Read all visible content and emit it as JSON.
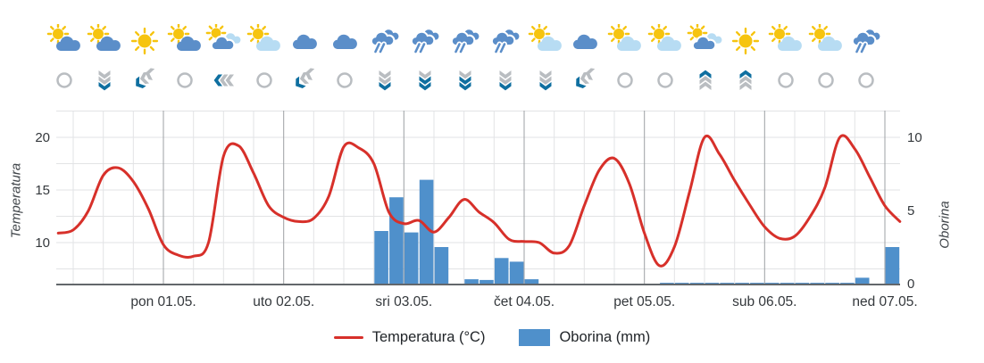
{
  "axes": {
    "left_title": "Temperatura",
    "right_title": "Oborina"
  },
  "legend": {
    "temperature_label": "Temperatura (°C)",
    "precipitation_label": "Oborina (mm)"
  },
  "colors": {
    "temperature": "#D7302A",
    "precipitation": "#4F90CB",
    "sun": "#F6C40F",
    "cloud_dark": "#5B8EC9",
    "cloud_light": "#B7DCF3",
    "wind_gray": "#B9BDC1",
    "wind_blue": "#0F6FA0",
    "grid_light": "#E2E3E5",
    "grid_day": "#9DA0A4",
    "axis_line": "#63676B",
    "text": "#34383C"
  },
  "forecast_icons": [
    {
      "weather": "sun-cloud",
      "wind": "calm"
    },
    {
      "weather": "sun-cloud",
      "wind": "down1"
    },
    {
      "weather": "sun",
      "wind": "curl"
    },
    {
      "weather": "sun-cloud",
      "wind": "calm"
    },
    {
      "weather": "sun-cloud-light",
      "wind": "left"
    },
    {
      "weather": "sun-light",
      "wind": "calm"
    },
    {
      "weather": "cloud",
      "wind": "curl"
    },
    {
      "weather": "cloud",
      "wind": "calm"
    },
    {
      "weather": "rain",
      "wind": "down1"
    },
    {
      "weather": "rain",
      "wind": "down2"
    },
    {
      "weather": "rain",
      "wind": "down2"
    },
    {
      "weather": "rain",
      "wind": "down1"
    },
    {
      "weather": "sun-light",
      "wind": "down1"
    },
    {
      "weather": "cloud",
      "wind": "curl"
    },
    {
      "weather": "sun-light",
      "wind": "calm"
    },
    {
      "weather": "sun-light",
      "wind": "calm"
    },
    {
      "weather": "sun-cloud-light",
      "wind": "up"
    },
    {
      "weather": "sun",
      "wind": "up"
    },
    {
      "weather": "sun-light",
      "wind": "calm"
    },
    {
      "weather": "sun-light",
      "wind": "calm"
    },
    {
      "weather": "rain",
      "wind": "calm"
    }
  ],
  "chart_data": {
    "type": "line+bar",
    "x_axis": {
      "day_labels": [
        "pon 01.05.",
        "uto 02.05.",
        "sri 03.05.",
        "čet 04.05.",
        "pet 05.05.",
        "sub 06.05.",
        "ned 07.05."
      ],
      "day_tick_hours": [
        0,
        24,
        48,
        72,
        96,
        120,
        144
      ],
      "minor_grid_step_hours": 6
    },
    "y_left": {
      "label": "Temperatura",
      "ticks": [
        20,
        15,
        10
      ],
      "min": 6.1,
      "max": 22.2
    },
    "y_right": {
      "label": "Oborina",
      "ticks": [
        10,
        5,
        0
      ],
      "min": 0,
      "max": 11.7
    },
    "series": [
      {
        "name": "Temperatura (°C)",
        "type": "line",
        "x_start_hours": -21,
        "x_step_hours": 3,
        "values": [
          10.9,
          11.2,
          13.0,
          16.4,
          17.1,
          15.8,
          13.2,
          9.8,
          8.8,
          8.7,
          10.0,
          18.2,
          19.2,
          16.6,
          13.5,
          12.4,
          12.0,
          12.3,
          14.4,
          19.1,
          19.0,
          17.5,
          12.9,
          11.8,
          12.1,
          11.0,
          12.4,
          14.1,
          12.9,
          11.9,
          10.3,
          10.1,
          10.0,
          9.0,
          9.7,
          13.5,
          16.9,
          18.0,
          15.6,
          10.9,
          7.8,
          9.6,
          14.8,
          20.0,
          18.4,
          15.9,
          13.6,
          11.5,
          10.4,
          10.6,
          12.4,
          15.2,
          20.0,
          18.9,
          16.2,
          13.5,
          12.0
        ]
      },
      {
        "name": "Oborina (mm)",
        "type": "bar",
        "x_start_hours": -21,
        "x_step_hours": 3,
        "values": [
          0,
          0,
          0,
          0,
          0,
          0,
          0,
          0,
          0,
          0,
          0,
          0,
          0,
          0,
          0,
          0,
          0,
          0,
          0,
          0,
          0,
          3.6,
          5.9,
          3.5,
          7.1,
          2.5,
          0,
          0.3,
          0.25,
          1.75,
          1.5,
          0.3,
          0,
          0,
          0,
          0,
          0,
          0,
          0,
          0,
          0.05,
          0.05,
          0.05,
          0.05,
          0.05,
          0.05,
          0.05,
          0.05,
          0.05,
          0.05,
          0.05,
          0.05,
          0.05,
          0.4,
          0,
          2.5
        ]
      }
    ]
  }
}
